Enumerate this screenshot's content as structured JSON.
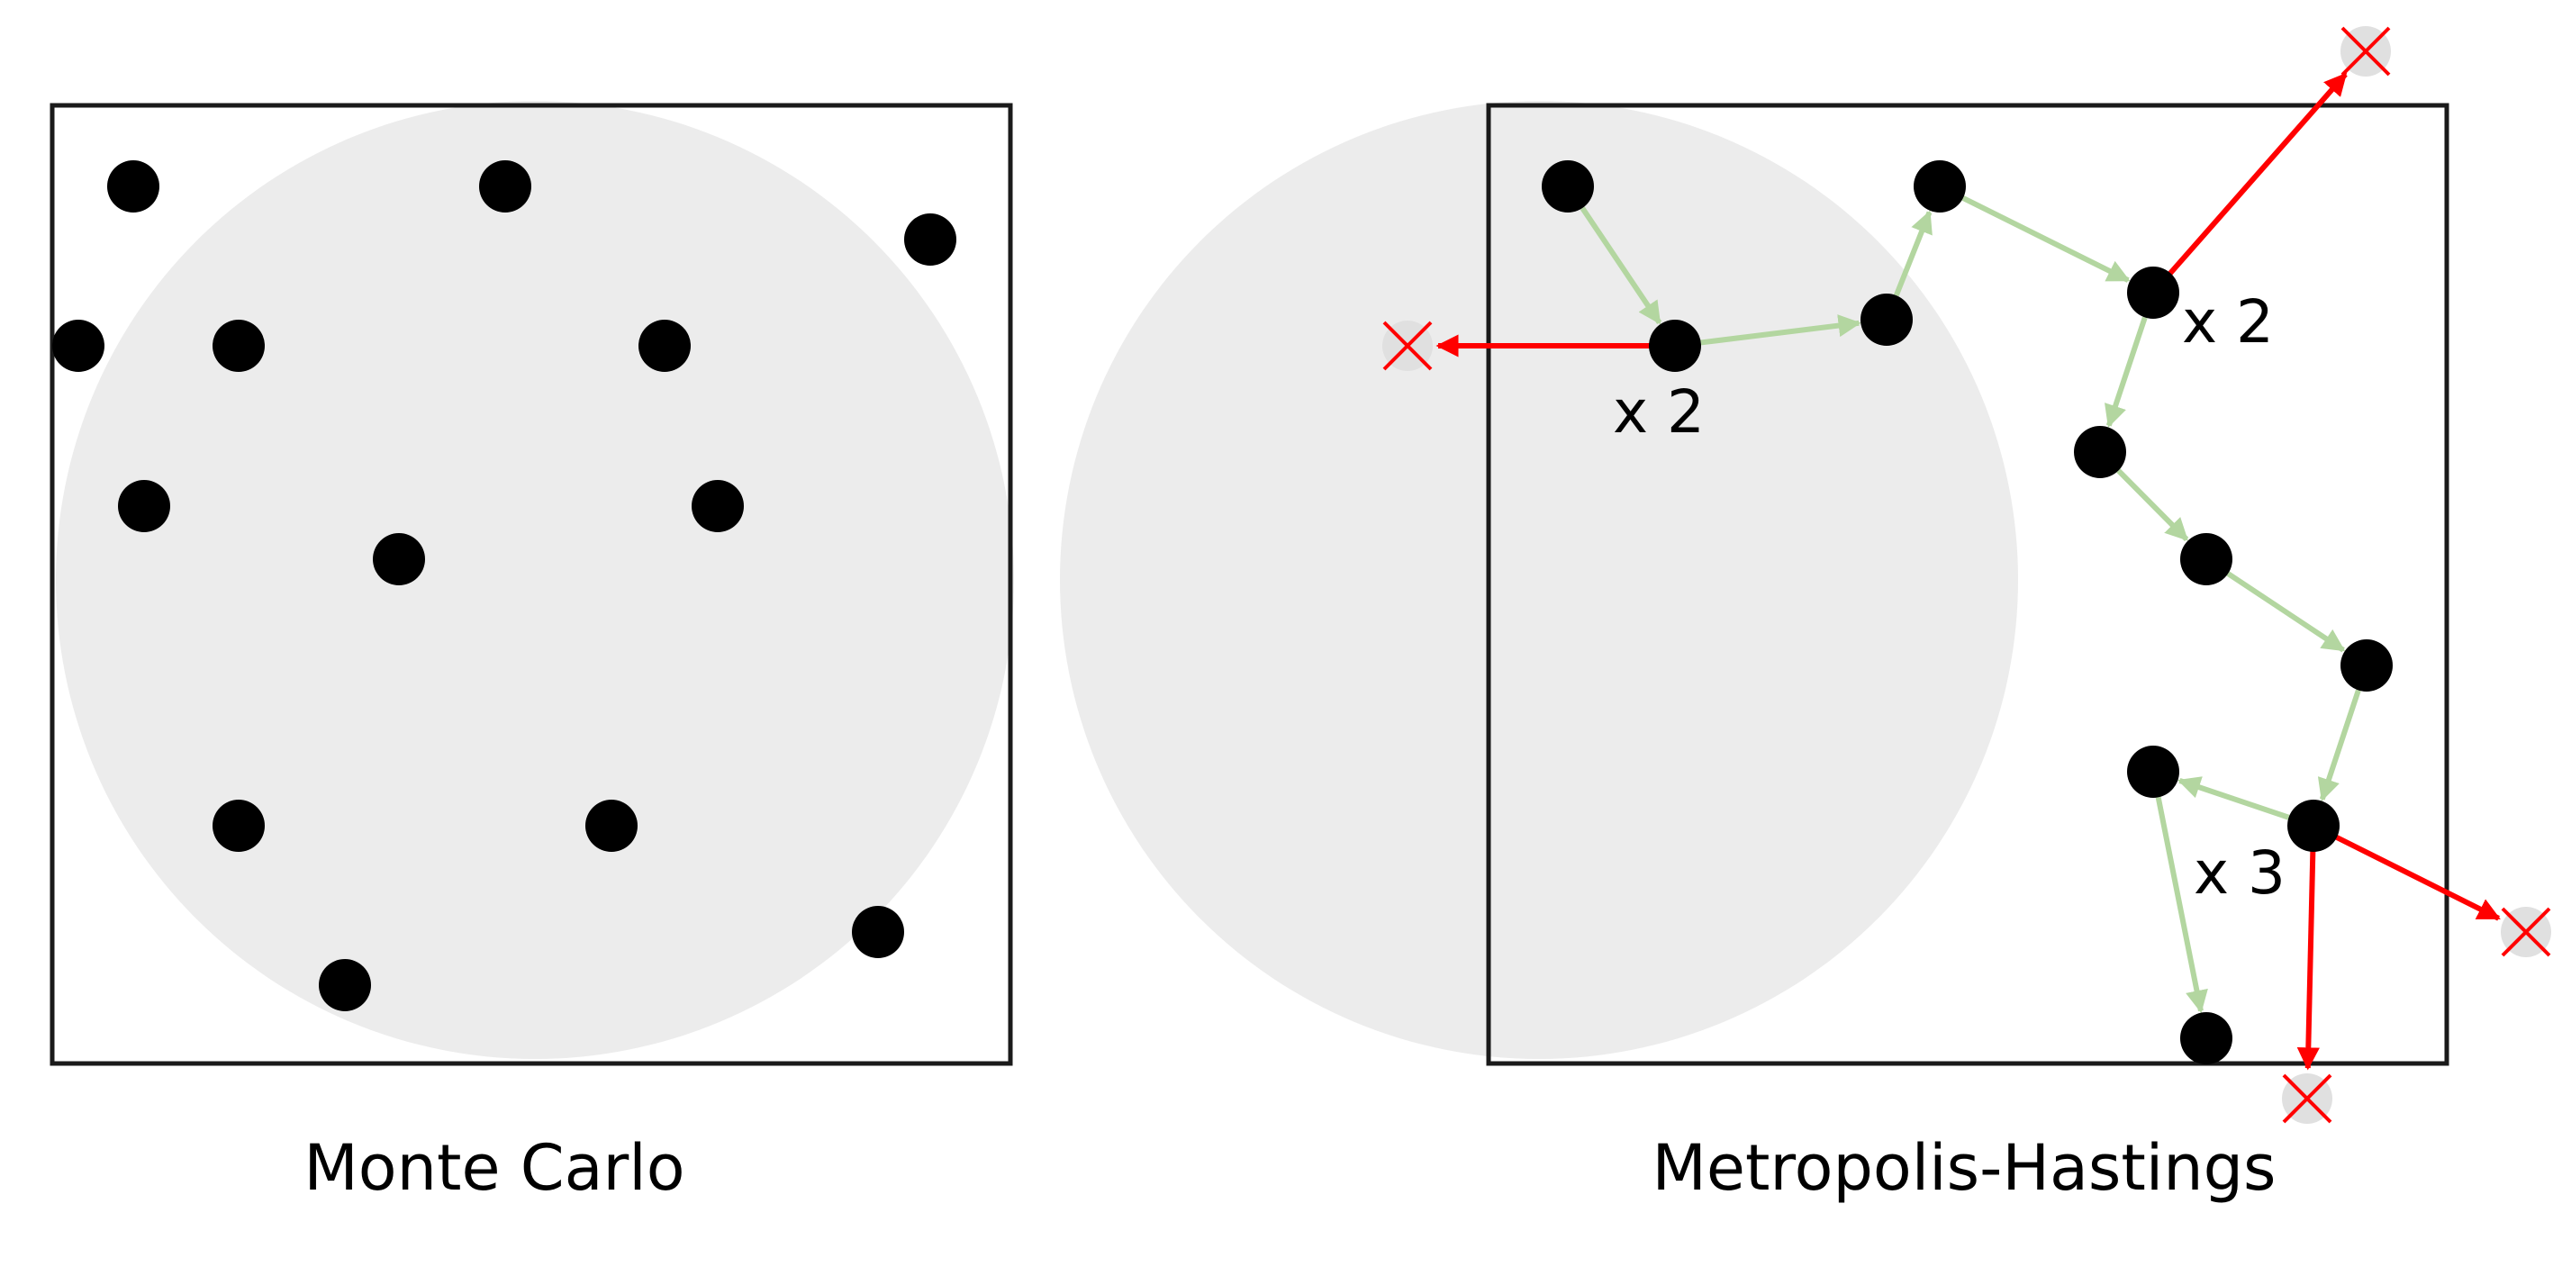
{
  "panels": {
    "monte_carlo": {
      "caption": "Monte Carlo"
    },
    "metropolis_hastings": {
      "caption": "Metropolis-Hastings",
      "multiplicity_labels": [
        "x 2",
        "x 2",
        "x 3"
      ]
    }
  },
  "colors": {
    "frame": "#1a1a1a",
    "target_region": "#ececec",
    "sample_point": "#000000",
    "accepted_move": "#b3d6a0",
    "rejected_move": "#ff0000",
    "rejected_marker": "#ff0000",
    "rejected_marker_bg": "#e0e0e0"
  }
}
